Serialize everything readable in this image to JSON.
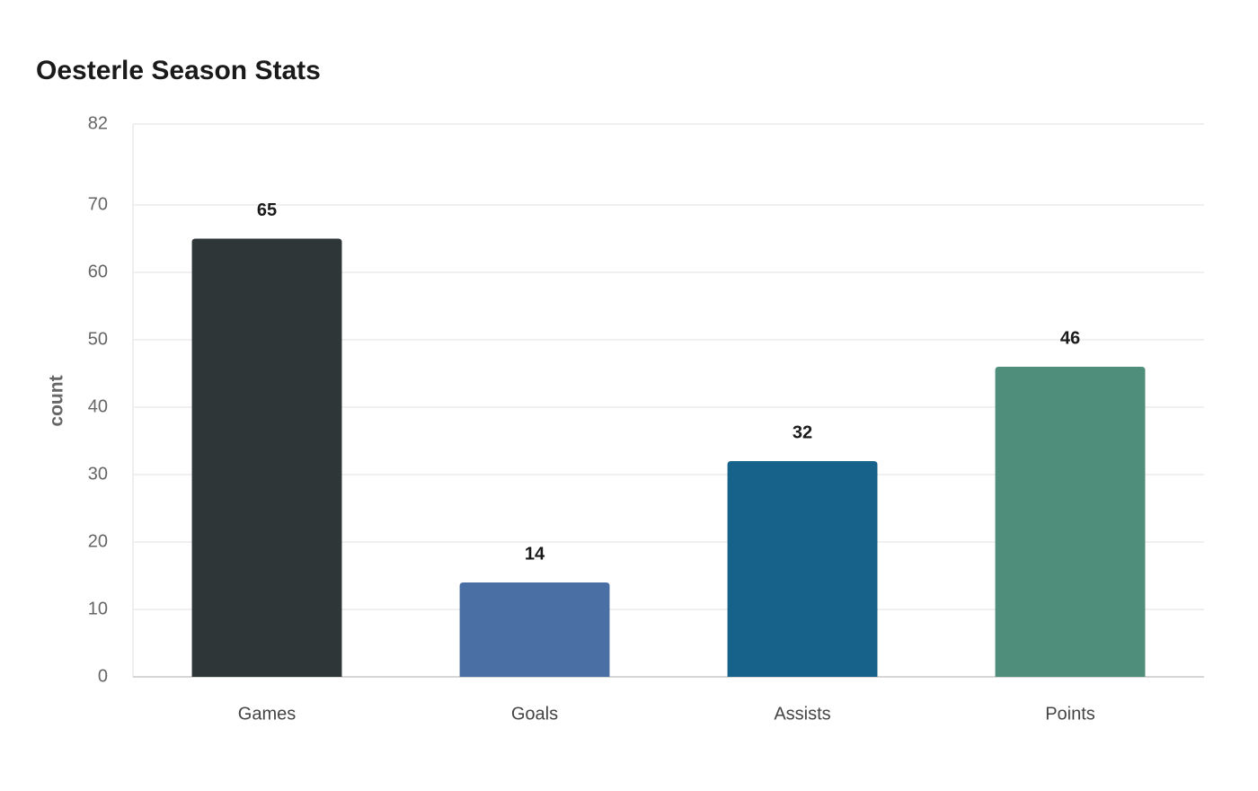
{
  "chart_data": {
    "type": "bar",
    "title": "Oesterle Season Stats",
    "y_label": "count",
    "categories": [
      "Games",
      "Goals",
      "Assists",
      "Points"
    ],
    "values": [
      65,
      14,
      32,
      46
    ],
    "colors": [
      "#2e3638",
      "#4a6fa5",
      "#17628a",
      "#4e8e7b"
    ],
    "ylim": [
      0,
      82
    ],
    "yticks": [
      0,
      10,
      20,
      30,
      40,
      50,
      60,
      70,
      82
    ],
    "grid": true
  }
}
